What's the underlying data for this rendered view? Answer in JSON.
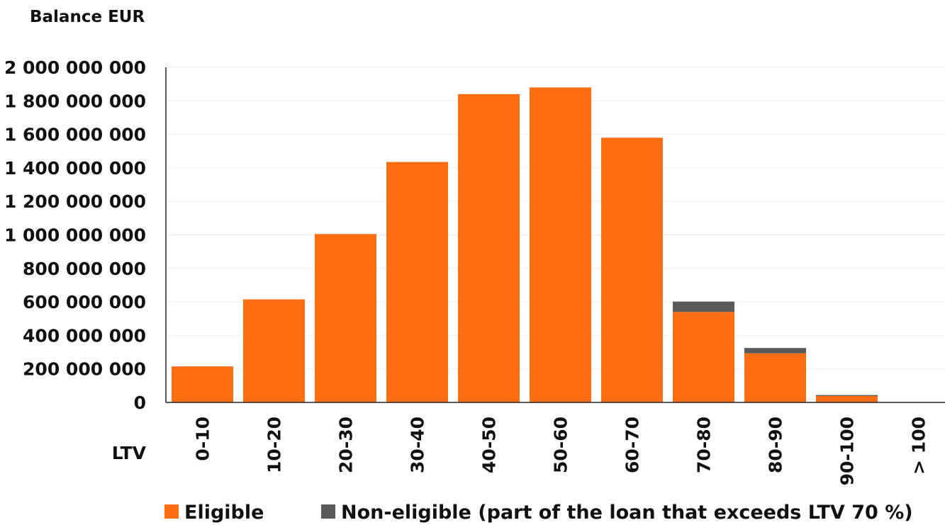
{
  "chart_data": {
    "type": "bar",
    "stacked": true,
    "title": "",
    "ylabel": "Balance EUR",
    "xlabel": "LTV",
    "categories": [
      "0-10",
      "10-20",
      "20-30",
      "30-40",
      "40-50",
      "50-60",
      "60-70",
      "70-80",
      "80-90",
      "90-100",
      "> 100"
    ],
    "series": [
      {
        "name": "Eligible",
        "color": "#ff6d12",
        "values": [
          215000000,
          615000000,
          1005000000,
          1435000000,
          1840000000,
          1880000000,
          1580000000,
          540000000,
          293000000,
          38000000,
          0
        ]
      },
      {
        "name": "Non-eligible (part of the loan that exceeds LTV 70 %)",
        "color": "#5a5a5a",
        "values": [
          0,
          0,
          0,
          0,
          0,
          0,
          0,
          62000000,
          32000000,
          6000000,
          0
        ]
      }
    ],
    "ylim": [
      0,
      2000000000
    ],
    "yticks": [
      0,
      200000000,
      400000000,
      600000000,
      800000000,
      1000000000,
      1200000000,
      1400000000,
      1600000000,
      1800000000,
      2000000000
    ],
    "ytick_labels": [
      "0",
      "200 000 000",
      "400 000 000",
      "600 000 000",
      "800 000 000",
      "1 000 000 000",
      "1 200 000 000",
      "1 400 000 000",
      "1 600 000 000",
      "1 800 000 000",
      "2 000 000 000"
    ],
    "grid": true,
    "legend_position": "bottom"
  }
}
